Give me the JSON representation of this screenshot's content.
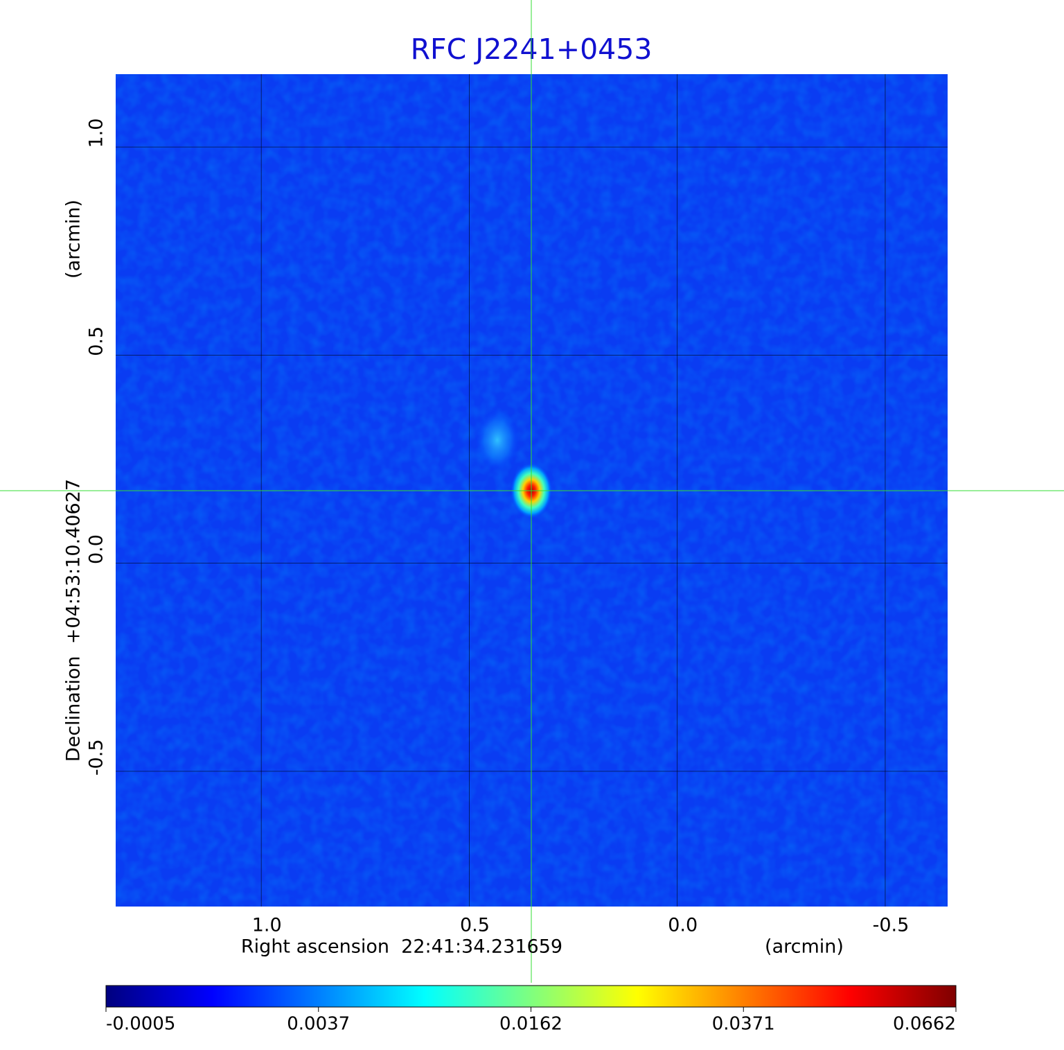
{
  "chart_data": {
    "type": "image",
    "title": "RFC J2241+0453",
    "x_label": "Right ascension  22:41:34.231659",
    "x_unit": "(arcmin)",
    "y_label": "Declination  +04:53:10.40627",
    "y_unit": "(arcmin)",
    "xlim": [
      1.35,
      -0.65
    ],
    "ylim": [
      -0.825,
      1.175
    ],
    "xticks": [
      {
        "value": 1,
        "label": "1.0"
      },
      0.5,
      {
        "value": 0,
        "label": "0.0"
      },
      -0.5
    ],
    "yticks": [
      {
        "value": 1,
        "label": "1.0"
      },
      0.5,
      {
        "value": 0,
        "label": "0.0"
      },
      -0.5
    ],
    "grid": true,
    "colormap": "jet",
    "colorbar_ticks": [
      -0.0005,
      0.0037,
      0.0162,
      0.0371,
      0.0662
    ]
  }
}
